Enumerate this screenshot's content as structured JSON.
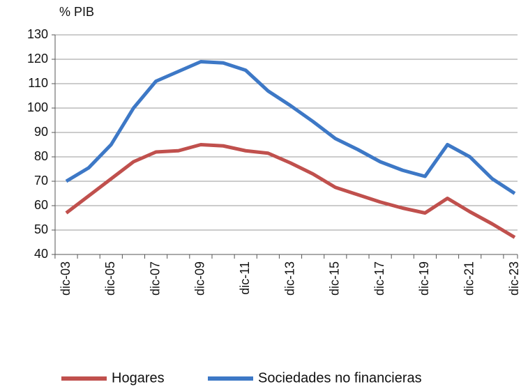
{
  "chart_data": {
    "type": "line",
    "y_label": "% PIB",
    "categories": [
      "dic-03",
      null,
      "dic-05",
      null,
      "dic-07",
      null,
      "dic-09",
      null,
      "dic-11",
      null,
      "dic-13",
      null,
      "dic-15",
      null,
      "dic-17",
      null,
      "dic-19",
      null,
      "dic-21",
      null,
      "dic-23"
    ],
    "series": [
      {
        "name": "Hogares",
        "color": "#c0504d",
        "values": [
          57,
          64,
          71,
          78,
          82,
          82.5,
          85,
          84.5,
          82.5,
          81.5,
          77.5,
          73,
          67.5,
          64.5,
          61.5,
          59,
          57,
          63,
          57.5,
          52.5,
          47
        ]
      },
      {
        "name": "Sociedades no financieras",
        "color": "#3d78c6",
        "values": [
          70,
          75.5,
          85,
          100,
          111,
          115,
          119,
          118.5,
          115.5,
          107,
          101,
          94.5,
          87.5,
          83,
          78,
          74.5,
          72,
          85,
          80,
          71,
          65
        ]
      }
    ],
    "ylim": [
      40,
      130
    ],
    "yticks": [
      40,
      50,
      60,
      70,
      80,
      90,
      100,
      110,
      120,
      130
    ],
    "grid": true
  }
}
